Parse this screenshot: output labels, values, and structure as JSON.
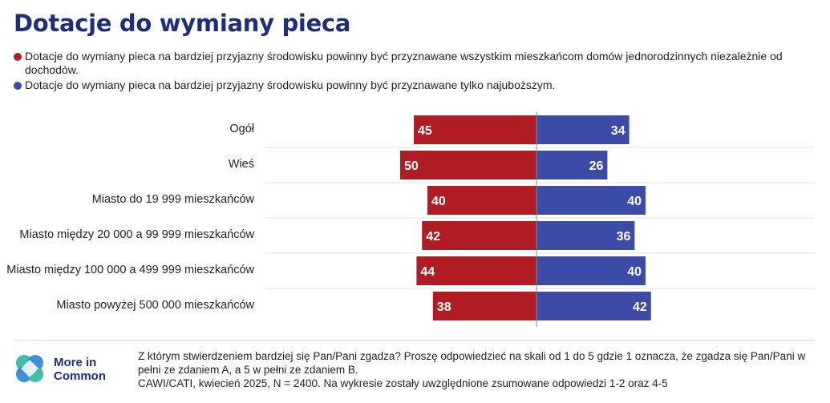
{
  "title": "Dotacje do wymiany pieca",
  "legend": {
    "a": "Dotacje do wymiany pieca na bardziej przyjazny środowisku powinny być przyznawane wszystkim mieszkańcom domów jednorodzinnych niezależnie od dochodów.",
    "b": "Dotacje do wymiany pieca na bardziej przyjazny środowisku powinny być przyznawane tylko najuboższym."
  },
  "colors": {
    "a": "#b01c23",
    "b": "#3c4ba5",
    "title": "#1f2e7a",
    "logo_green": "#2fb6a0",
    "logo_blue": "#2a82d2"
  },
  "chart_data": {
    "type": "bar",
    "orientation": "horizontal-diverging",
    "categories": [
      "Ogół",
      "Wieś",
      "Miasto do 19 999 mieszkańców",
      "Miasto między 20 000 a 99 999 mieszkańców",
      "Miasto między 100 000 a 499 999 mieszkańców",
      "Miasto powyżej 500 000 mieszkańców"
    ],
    "series": [
      {
        "values": [
          45,
          50,
          40,
          42,
          44,
          38
        ]
      },
      {
        "values": [
          34,
          26,
          40,
          36,
          40,
          42
        ]
      }
    ],
    "data_labels": true,
    "grid": false
  },
  "logo": {
    "text": "More in Common"
  },
  "note": {
    "question": "Z którym stwierdzeniem bardziej się Pan/Pani zgadza? Proszę odpowiedzieć na skali od 1 do 5 gdzie 1 oznacza, że zgadza się Pan/Pani w pełni ze zdaniem A, a 5 w pełni ze zdaniem B.",
    "method": "CAWI/CATI, kwiecień 2025, N = 2400. Na wykresie zostały uwzględnione zsumowane odpowiedzi 1-2 oraz 4-5"
  }
}
